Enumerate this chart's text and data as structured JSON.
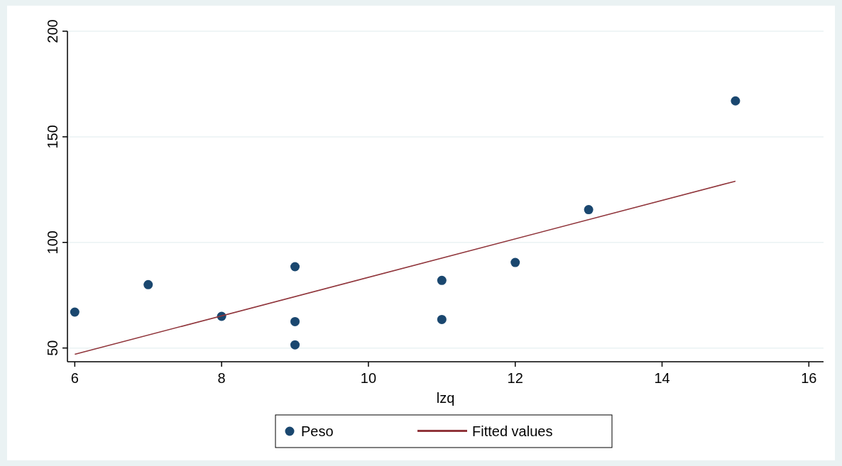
{
  "chart_data": {
    "type": "scatter",
    "xlabel": "lzq",
    "series": [
      {
        "name": "Peso",
        "marker": "circle",
        "color": "#1a476f",
        "x": [
          6,
          7,
          8,
          9,
          9,
          9,
          11,
          11,
          12,
          13,
          15
        ],
        "values": [
          67,
          80,
          65,
          88.5,
          62.5,
          51.5,
          82,
          63.5,
          90.5,
          115.5,
          167
        ]
      },
      {
        "name": "Fitted values",
        "type": "line",
        "color": "#90353b",
        "x": [
          6,
          15
        ],
        "values": [
          47,
          129
        ]
      }
    ],
    "xlim": [
      5.9,
      16.2
    ],
    "xticks": [
      6,
      8,
      10,
      12,
      14,
      16
    ],
    "ylim": [
      43.5,
      200
    ],
    "yticks": [
      50,
      100,
      150,
      200
    ],
    "grid": "y",
    "legend": "bottom"
  }
}
